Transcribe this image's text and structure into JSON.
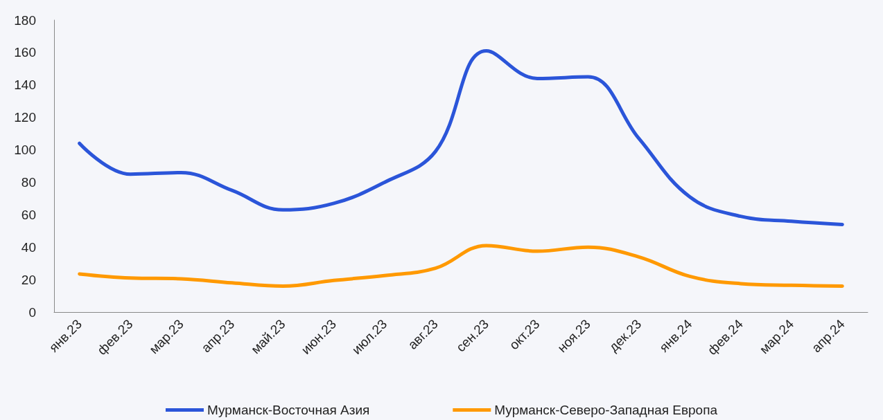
{
  "chart_data": {
    "type": "line",
    "categories": [
      "янв.23",
      "фев.23",
      "мар.23",
      "апр.23",
      "май.23",
      "июн.23",
      "июл.23",
      "авг.23",
      "сен.23",
      "окт.23",
      "ноя.23",
      "дек.23",
      "янв.24",
      "фев.24",
      "мар.24",
      "апр.24"
    ],
    "series": [
      {
        "name": "Мурманск-Восточная Азия",
        "color": "#2b55d9",
        "values": [
          104,
          85,
          86,
          75,
          63,
          67,
          80,
          99,
          161,
          144,
          145,
          107,
          71,
          59,
          56,
          54
        ]
      },
      {
        "name": "Мурманск-Северо-Западная Европа",
        "color": "#ff9900",
        "values": [
          23.5,
          21,
          20.5,
          18,
          16,
          19.5,
          22.5,
          27,
          41,
          37.5,
          40,
          34,
          22,
          17.5,
          16.5,
          16
        ]
      }
    ],
    "ylim": [
      0,
      180
    ],
    "yticks": [
      0,
      20,
      40,
      60,
      80,
      100,
      120,
      140,
      160,
      180
    ],
    "grid": false,
    "legend": "bottom",
    "marker": "none",
    "line_style": "solid"
  }
}
